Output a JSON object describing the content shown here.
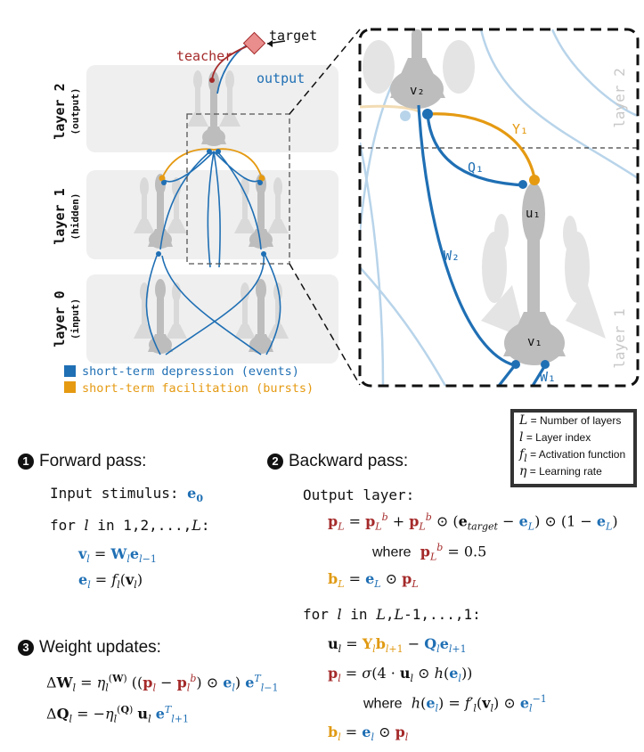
{
  "diagram": {
    "layer_labels": [
      {
        "title": "layer 2",
        "sub": "(output)"
      },
      {
        "title": "layer 1",
        "sub": "(hidden)"
      },
      {
        "title": "layer 0",
        "sub": "(input)"
      }
    ],
    "teacher": "teacher",
    "target": "target",
    "output": "output",
    "legend": {
      "depression": "short-term depression (events)",
      "facilitation": "short-term facilitation (bursts)"
    },
    "zoom": {
      "layer2": "layer 2",
      "layer1": "layer 1",
      "v2": "v₂",
      "u1": "u₁",
      "v1": "v₁",
      "Y1": "Y₁",
      "Q1": "Q₁",
      "W2": "W₂",
      "W1": "W₁"
    },
    "colors": {
      "blue": "#1f6fb4",
      "orange": "#e59a12",
      "red": "#a52a2a",
      "neuron_gray": "#bdbdbd",
      "layer_bg": "#efefef"
    }
  },
  "symbols_legend": [
    {
      "sym": "L",
      "desc": "= Number of layers"
    },
    {
      "sym": "l",
      "desc": "= Layer index"
    },
    {
      "sym": "fl",
      "desc": "= Activation function"
    },
    {
      "sym": "η",
      "desc": "= Learning rate"
    }
  ],
  "algorithm": {
    "forward": {
      "number": "1",
      "title": "Forward pass:",
      "input_text": "Input stimulus:",
      "for_loop": "for"
    },
    "backward": {
      "number": "2",
      "title": "Backward pass:",
      "output_layer": "Output layer:",
      "where": "where",
      "where2": "where"
    },
    "weights": {
      "number": "3",
      "title": "Weight updates:"
    }
  }
}
